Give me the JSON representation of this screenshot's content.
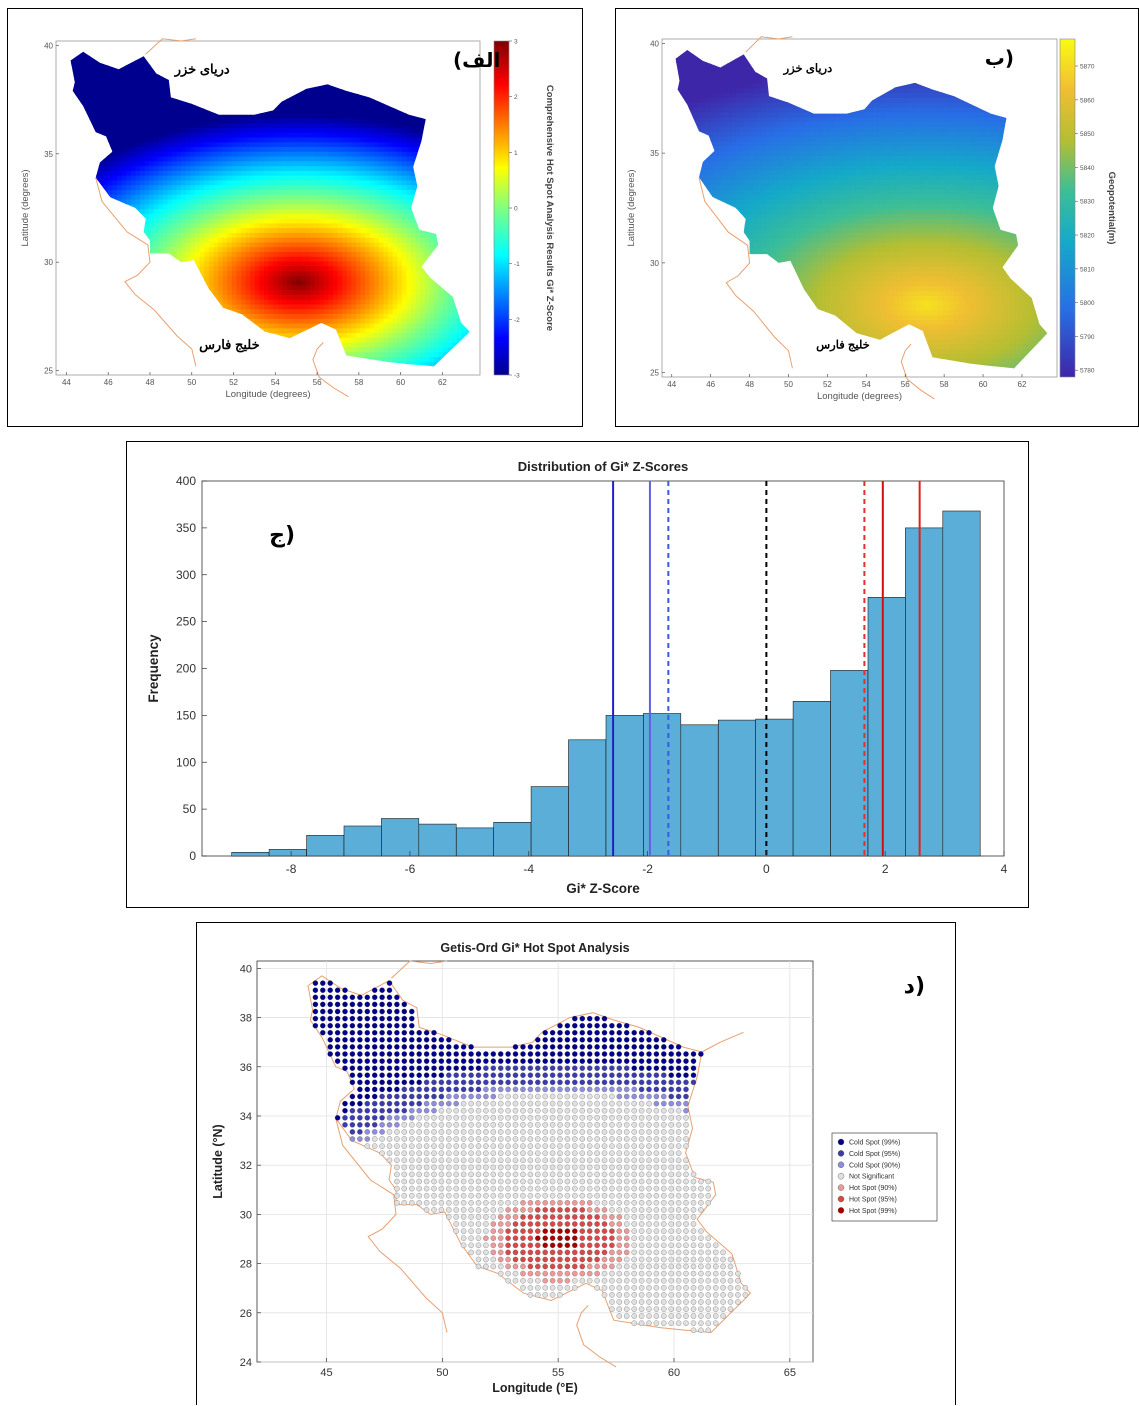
{
  "panels": {
    "a": {
      "label": "الف)",
      "caspian": "دریای خزر",
      "gulf": "خلیج فارس"
    },
    "b": {
      "label": "ب)",
      "caspian": "دریای خزر",
      "gulf": "خلیج فارس"
    },
    "c": {
      "label": "ج)"
    },
    "d": {
      "label": "د)"
    }
  },
  "chart_data": [
    {
      "id": "a",
      "type": "heatmap",
      "xlabel": "Longitude (degrees)",
      "ylabel": "Latitude (degrees)",
      "xticks": [
        44,
        46,
        48,
        50,
        52,
        54,
        56,
        58,
        60,
        62
      ],
      "yticks": [
        25,
        30,
        35,
        40
      ],
      "xlim": [
        43.5,
        63.8
      ],
      "ylim": [
        24.8,
        40.2
      ],
      "colorbar": {
        "label": "Comprehensive Hot Spot Analysis Results Gi* Z-Score",
        "ticks": [
          -3,
          -2,
          -1,
          0,
          1,
          2,
          3
        ],
        "range": [
          -3,
          3
        ],
        "colormap": "jet"
      }
    },
    {
      "id": "b",
      "type": "heatmap",
      "xlabel": "Longitude (degrees)",
      "ylabel": "Latitude (degrees)",
      "xticks": [
        44,
        46,
        48,
        50,
        52,
        54,
        56,
        58,
        60,
        62
      ],
      "yticks": [
        25,
        30,
        35,
        40
      ],
      "xlim": [
        43.5,
        63.8
      ],
      "ylim": [
        24.8,
        40.2
      ],
      "colorbar": {
        "label": "Geopotential(m)",
        "ticks": [
          5780,
          5790,
          5800,
          5810,
          5820,
          5830,
          5840,
          5850,
          5860,
          5870
        ],
        "range": [
          5778,
          5878
        ],
        "colormap": "parula"
      }
    },
    {
      "id": "c",
      "type": "bar",
      "title": "Distribution of Gi* Z-Scores",
      "xlabel": "Gi* Z-Score",
      "ylabel": "Frequency",
      "xlim": [
        -9.5,
        4
      ],
      "ylim": [
        0,
        400
      ],
      "xticks": [
        -8,
        -6,
        -4,
        -2,
        0,
        2,
        4
      ],
      "yticks": [
        0,
        50,
        100,
        150,
        200,
        250,
        300,
        350,
        400
      ],
      "bin_width": 0.63,
      "bin_start": -9.0,
      "values": [
        4,
        7,
        22,
        32,
        40,
        34,
        30,
        36,
        74,
        124,
        150,
        152,
        140,
        145,
        146,
        165,
        198,
        276,
        350,
        368
      ],
      "bar_color": "#5BAED8",
      "vlines": [
        {
          "x": -2.58,
          "style": "solid",
          "color": "#2020C8"
        },
        {
          "x": -1.96,
          "style": "solid",
          "color": "#6060E0"
        },
        {
          "x": -1.65,
          "style": "dashed",
          "color": "#3A5BE0"
        },
        {
          "x": 0,
          "style": "dashed",
          "color": "#000000"
        },
        {
          "x": 1.65,
          "style": "dashed",
          "color": "#E03030"
        },
        {
          "x": 1.96,
          "style": "solid",
          "color": "#D01010"
        },
        {
          "x": 2.58,
          "style": "solid",
          "color": "#E02020"
        }
      ]
    },
    {
      "id": "d",
      "type": "scatter",
      "title": "Getis-Ord Gi* Hot Spot Analysis",
      "xlabel": "Longitude (°E)",
      "ylabel": "Latitude (°N)",
      "xticks": [
        45,
        50,
        55,
        60,
        65
      ],
      "yticks": [
        24,
        26,
        28,
        30,
        32,
        34,
        36,
        38,
        40
      ],
      "xlim": [
        42,
        66
      ],
      "ylim": [
        24,
        40.3
      ],
      "grid": true,
      "legend_position": "right",
      "legend": [
        {
          "name": "Cold Spot (99%)",
          "color": "#00008B"
        },
        {
          "name": "Cold Spot (95%)",
          "color": "#3B3BB0"
        },
        {
          "name": "Cold Spot (90%)",
          "color": "#8E8EDC"
        },
        {
          "name": "Not Significant",
          "color": "#E0E0E0"
        },
        {
          "name": "Hot Spot (90%)",
          "color": "#EE9999"
        },
        {
          "name": "Hot Spot (95%)",
          "color": "#D84848"
        },
        {
          "name": "Hot Spot (99%)",
          "color": "#A50000"
        }
      ]
    }
  ]
}
